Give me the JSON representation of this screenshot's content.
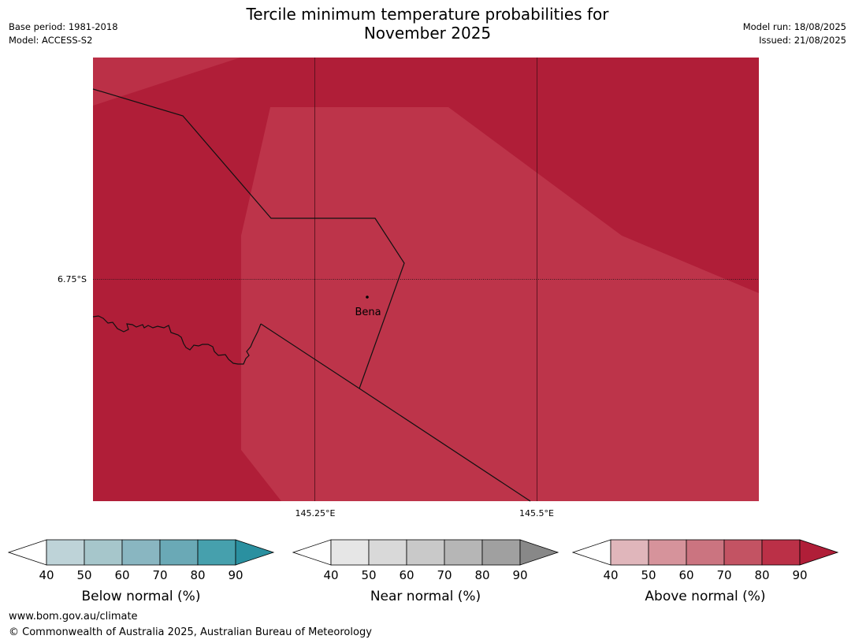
{
  "header": {
    "title_line1": "Tercile minimum temperature probabilities for",
    "title_line2": "November 2025",
    "base_period": "Base period: 1981-2018",
    "model": "Model: ACCESS-S2",
    "model_run": "Model run: 18/08/2025",
    "issued": "Issued: 21/08/2025"
  },
  "map": {
    "latitude_label": "6.75°S",
    "longitude_labels": [
      "145.25°E",
      "145.5°E"
    ],
    "place": "Bena",
    "colors": {
      "above_80_90": "#b01e38",
      "above_70_80": "#bd344a",
      "light_band": "#bb3047",
      "border": "#111111",
      "gridline": "#4a0e18"
    }
  },
  "legends": [
    {
      "title": "Below normal (%)",
      "ticks": [
        "40",
        "50",
        "60",
        "70",
        "80",
        "90"
      ],
      "colors": [
        "#ffffff",
        "#bed3d8",
        "#a6c6cb",
        "#89b6c1",
        "#6aa9b6",
        "#46a0ad",
        "#2a90a0"
      ]
    },
    {
      "title": "Near normal (%)",
      "ticks": [
        "40",
        "50",
        "60",
        "70",
        "80",
        "90"
      ],
      "colors": [
        "#ffffff",
        "#e6e6e6",
        "#d9d9d9",
        "#c9c9c9",
        "#b6b6b6",
        "#a0a0a0",
        "#888888"
      ]
    },
    {
      "title": "Above normal (%)",
      "ticks": [
        "40",
        "50",
        "60",
        "70",
        "80",
        "90"
      ],
      "colors": [
        "#ffffff",
        "#e0b6bb",
        "#d6939b",
        "#cb7480",
        "#c35363",
        "#bb3047",
        "#b01e38"
      ]
    }
  ],
  "footer": {
    "url": "www.bom.gov.au/climate",
    "copyright": "© Commonwealth of Australia 2025, Australian Bureau of Meteorology"
  }
}
